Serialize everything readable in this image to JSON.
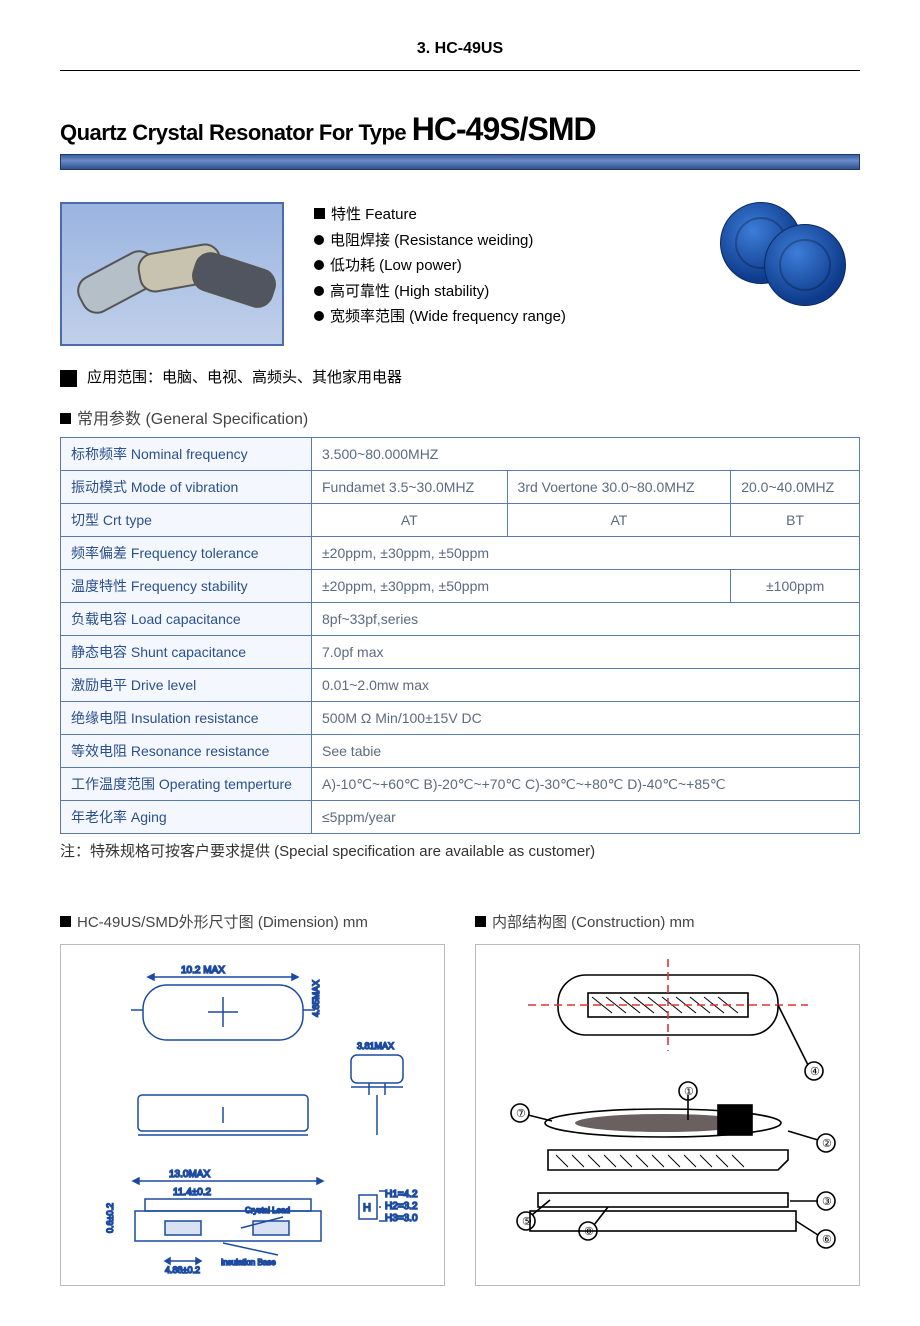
{
  "page_header": "3.  HC-49US",
  "title_thin": "Quartz Crystal Resonator For Type ",
  "title_bold": "HC-49S/SMD",
  "feature_heading": "特性 Feature",
  "features": [
    "电阻焊接 (Resistance weiding)",
    "低功耗 (Low power)",
    "高可靠性 (High stability)",
    "宽频率范围 (Wide frequency range)"
  ],
  "application_label": "应用范围：电脑、电视、高频头、其他家用电器",
  "general_spec_heading": "常用参数 (General Specification)",
  "spec_rows": [
    {
      "label": "标称频率 Nominal frequency",
      "cells": [
        "3.500~80.000MHZ"
      ],
      "span": [
        3
      ]
    },
    {
      "label": "振动模式 Mode of vibration",
      "cells": [
        "Fundamet 3.5~30.0MHZ",
        "3rd Voertone 30.0~80.0MHZ",
        "20.0~40.0MHZ"
      ],
      "span": [
        1,
        1,
        1
      ]
    },
    {
      "label": "切型 Crt type",
      "cells": [
        "AT",
        "AT",
        "BT"
      ],
      "span": [
        1,
        1,
        1
      ],
      "center": true
    },
    {
      "label": "频率偏差 Frequency tolerance",
      "cells": [
        "±20ppm, ±30ppm, ±50ppm"
      ],
      "span": [
        3
      ]
    },
    {
      "label": "温度特性 Frequency stability",
      "cells": [
        "±20ppm, ±30ppm, ±50ppm",
        "±100ppm"
      ],
      "span": [
        2,
        1
      ],
      "centerLast": true
    },
    {
      "label": "负载电容 Load capacitance",
      "cells": [
        "8pf~33pf,series"
      ],
      "span": [
        3
      ]
    },
    {
      "label": "静态电容 Shunt capacitance",
      "cells": [
        "7.0pf max"
      ],
      "span": [
        3
      ]
    },
    {
      "label": "激励电平 Drive level",
      "cells": [
        "0.01~2.0mw max"
      ],
      "span": [
        3
      ]
    },
    {
      "label": "绝缘电阻 Insulation resistance",
      "cells": [
        "500M Ω Min/100±15V DC"
      ],
      "span": [
        3
      ]
    },
    {
      "label": "等效电阻 Resonance resistance",
      "cells": [
        "See tabie"
      ],
      "span": [
        3
      ]
    },
    {
      "label": "工作温度范围 Operating temperture",
      "cells": [
        "A)-10℃~+60℃ B)-20℃~+70℃ C)-30℃~+80℃ D)-40℃~+85℃"
      ],
      "span": [
        3
      ]
    },
    {
      "label": "年老化率 Aging",
      "cells": [
        "≤5ppm/year"
      ],
      "span": [
        3
      ]
    }
  ],
  "note": "注：特殊规格可按客户要求提供 (Special specification are available as customer)",
  "dimension_heading": "HC-49US/SMD外形尺寸图 (Dimension) mm",
  "construction_heading": "内部结构图 (Construction) mm",
  "dim_labels": {
    "w1": "10.2 MAX",
    "h1": "4.65MAX",
    "w2": "3.81MAX",
    "w3": "13.0MAX",
    "w4": "11.4±0.2",
    "w5": "4.88±0.2",
    "h2": "0.6±0.2",
    "hbox": "H",
    "hvals": "H1=4.2\nH2=3.2\nH3=3.0",
    "cl": "Crystal Lead",
    "ib": "Insulation Base"
  },
  "construction_labels": [
    "①",
    "②",
    "③",
    "④",
    "⑤",
    "⑥",
    "⑦",
    "⑧"
  ],
  "colors": {
    "table_border": "#5a7aa8",
    "label_bg": "#f4f8fe",
    "label_color": "#2a4f8f",
    "value_color": "#5a6b82",
    "bar_gradient": "#3a5d9f"
  }
}
